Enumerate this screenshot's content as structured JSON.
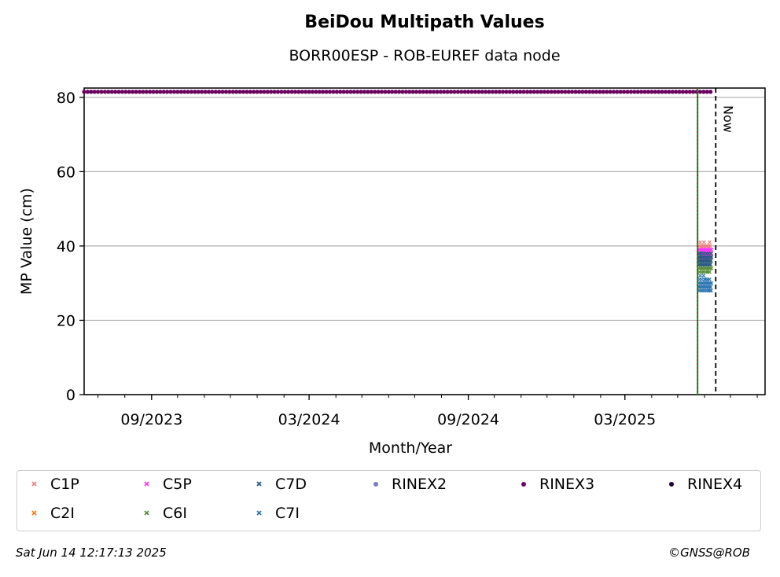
{
  "header": {
    "title": "BeiDou Multipath Values",
    "subtitle": "BORR00ESP - ROB-EUREF data node"
  },
  "footer": {
    "timestamp": "Sat Jun 14 12:17:13 2025",
    "copyright": "©GNSS@ROB"
  },
  "chart_data": {
    "type": "scatter",
    "xlabel": "Month/Year",
    "ylabel": "MP Value (cm)",
    "xlim": [
      "2023-06-15",
      "2025-08-10"
    ],
    "ylim": [
      0,
      82.5
    ],
    "x_tick_labels": [
      "09/2023",
      "03/2024",
      "09/2024",
      "03/2025"
    ],
    "x_ticks": [
      "2023-09-01",
      "2024-03-01",
      "2024-09-01",
      "2025-03-01"
    ],
    "y_ticks": [
      0,
      20,
      40,
      60,
      80
    ],
    "grid": "y",
    "legend_placement": "below",
    "vertical_lines": [
      {
        "date": "2025-05-24",
        "style": "green-red-dotted"
      },
      {
        "date": "2025-06-14",
        "style": "black-dashed",
        "label": "Now"
      }
    ],
    "data_start": "2025-05-25",
    "data_end": "2025-06-09",
    "series": [
      {
        "name": "C1P",
        "marker": "x",
        "color": "#f08080",
        "values": [
          38,
          39,
          40,
          37,
          39,
          41,
          38,
          40,
          39,
          37,
          38,
          40,
          39,
          38,
          40,
          41,
          39,
          38,
          37,
          39,
          40,
          38,
          39,
          40,
          38,
          37,
          39,
          40,
          38,
          39,
          41,
          40,
          38,
          39,
          37,
          38
        ]
      },
      {
        "name": "C2I",
        "marker": "x",
        "color": "#ff7f0e",
        "values": [
          37,
          36,
          38,
          37,
          36,
          38,
          37,
          36,
          37,
          38,
          36,
          37,
          38,
          37,
          36,
          38,
          37,
          36,
          37,
          38,
          36,
          37,
          38,
          36,
          37,
          38,
          36,
          37,
          36,
          38,
          37,
          36,
          37,
          38,
          36,
          37
        ]
      },
      {
        "name": "C5P",
        "marker": "x",
        "color": "#ff33ff",
        "values": [
          38,
          37,
          39,
          38,
          36,
          38,
          39,
          37,
          38,
          37,
          39,
          38,
          37,
          38,
          39,
          37,
          38,
          36,
          38,
          39,
          37,
          38,
          37,
          39,
          38,
          37,
          38,
          39,
          37,
          38,
          37,
          39,
          38,
          37,
          38,
          39
        ]
      },
      {
        "name": "C6I",
        "marker": "x",
        "color": "#5a8f3a",
        "values": [
          35,
          34,
          36,
          33,
          35,
          37,
          34,
          36,
          35,
          33,
          34,
          36,
          35,
          34,
          33,
          36,
          35,
          34,
          36,
          35,
          33,
          34,
          36,
          35,
          34,
          33,
          35,
          36,
          34,
          35,
          33,
          36,
          34,
          35,
          36,
          34
        ]
      },
      {
        "name": "C7D",
        "marker": "x",
        "color": "#2a5a8a",
        "values": [
          36,
          37,
          35,
          38,
          36,
          37,
          35,
          36,
          38,
          37,
          36,
          35,
          37,
          36,
          38,
          35,
          37,
          36,
          35,
          37,
          36,
          38,
          35,
          36,
          37,
          35,
          36,
          38,
          37,
          35,
          36,
          37,
          35,
          36,
          38,
          37
        ]
      },
      {
        "name": "C7I",
        "marker": "x",
        "color": "#2f77b4",
        "values": [
          29,
          30,
          28,
          31,
          29,
          32,
          30,
          28,
          29,
          31,
          30,
          29,
          28,
          30,
          32,
          29,
          31,
          28,
          30,
          29,
          31,
          30,
          28,
          29,
          30,
          31,
          29,
          28,
          30,
          29,
          31,
          28,
          30,
          29,
          28,
          30
        ]
      },
      {
        "name": "RINEX2",
        "marker": "o",
        "color": "#7b7bc0",
        "values": []
      },
      {
        "name": "RINEX3",
        "marker": "o",
        "color": "#6a0060",
        "values": [
          81.5
        ],
        "x_range": [
          "2023-06-15",
          "2025-06-09"
        ]
      },
      {
        "name": "RINEX4",
        "marker": "o",
        "color": "#1a0030",
        "values": []
      }
    ]
  },
  "legend": {
    "items": [
      {
        "label": "C1P",
        "color": "#f08080",
        "marker": "x"
      },
      {
        "label": "C5P",
        "color": "#ff33ff",
        "marker": "x"
      },
      {
        "label": "C7D",
        "color": "#2a5a8a",
        "marker": "x"
      },
      {
        "label": "RINEX2",
        "color": "#7b7bc0",
        "marker": "o"
      },
      {
        "label": "RINEX3",
        "color": "#6a0060",
        "marker": "o"
      },
      {
        "label": "RINEX4",
        "color": "#1a0030",
        "marker": "o"
      },
      {
        "label": "C2I",
        "color": "#ff7f0e",
        "marker": "x"
      },
      {
        "label": "C6I",
        "color": "#5a8f3a",
        "marker": "x"
      },
      {
        "label": "C7I",
        "color": "#2f77b4",
        "marker": "x"
      }
    ]
  }
}
